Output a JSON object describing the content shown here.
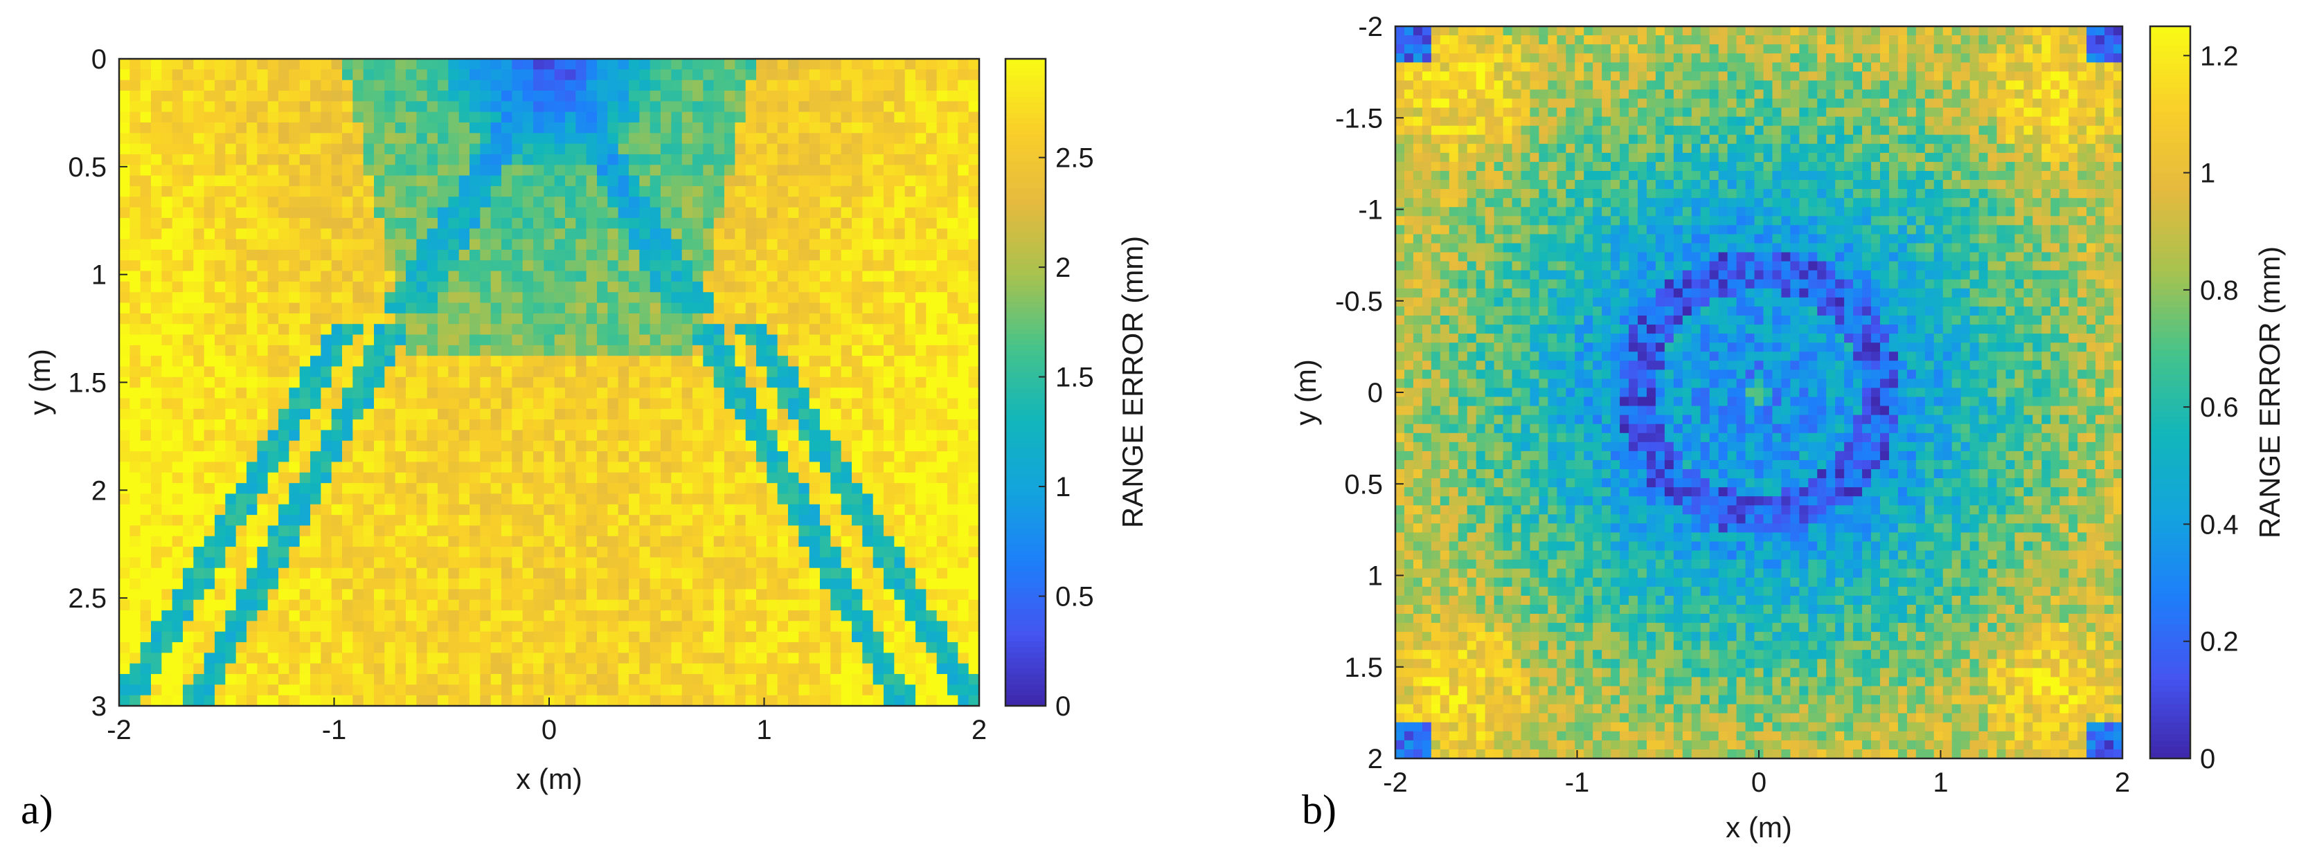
{
  "chart_data": [
    {
      "type": "heatmap",
      "panel_label": "a)",
      "xlabel": "x (m)",
      "ylabel": "y (m)",
      "colorbar_label": "RANGE ERROR (mm)",
      "xlim": [
        -2,
        2
      ],
      "ylim": [
        0,
        3
      ],
      "y_axis_reversed": true,
      "clim": [
        0,
        2.95
      ],
      "x_ticks": [
        "-2",
        "-1",
        "0",
        "1",
        "2"
      ],
      "y_ticks": [
        "0",
        "0.5",
        "1",
        "1.5",
        "2",
        "2.5",
        "3"
      ],
      "colorbar_ticks": [
        "0",
        "0.5",
        "1",
        "1.5",
        "2",
        "2.5"
      ],
      "grid": false,
      "colormap": "parula",
      "description_values": {
        "apex_minimum_at": [
          0,
          0
        ],
        "apex_minimum_value": 0.2,
        "lateral_edge_maximum": 2.7,
        "central_upper_region_value": 1.5,
        "lower_central_region_value": 2.6,
        "diagonal_band_value": 1.3
      }
    },
    {
      "type": "heatmap",
      "panel_label": "b)",
      "xlabel": "x (m)",
      "ylabel": "y (m)",
      "colorbar_label": "RANGE ERROR (mm)",
      "xlim": [
        -2,
        2
      ],
      "ylim": [
        -2,
        2
      ],
      "y_axis_reversed": true,
      "clim": [
        0,
        1.25
      ],
      "x_ticks": [
        "-2",
        "-1",
        "0",
        "1",
        "2"
      ],
      "y_ticks": [
        "-2",
        "-1.5",
        "-1",
        "-0.5",
        "0",
        "0.5",
        "1",
        "1.5",
        "2"
      ],
      "colorbar_ticks": [
        "0",
        "0.2",
        "0.4",
        "0.6",
        "0.8",
        "1",
        "1.2"
      ],
      "grid": false,
      "colormap": "parula",
      "description_values": {
        "ring_minimum_radius_m": 0.68,
        "ring_minimum_value": 0.1,
        "center_value": 0.6,
        "outer_region_value": 0.9,
        "corner_hotspot_value": 1.15,
        "extreme_corner_value": 0.2
      }
    }
  ],
  "colors": {
    "colormap_stops": [
      "#3e26a8",
      "#4454f0",
      "#1e7ffa",
      "#13a4dd",
      "#12b6ba",
      "#47c38a",
      "#a8c24f",
      "#e5ba3e",
      "#f9cf2a",
      "#f9fb15"
    ],
    "axis": "#262626"
  }
}
